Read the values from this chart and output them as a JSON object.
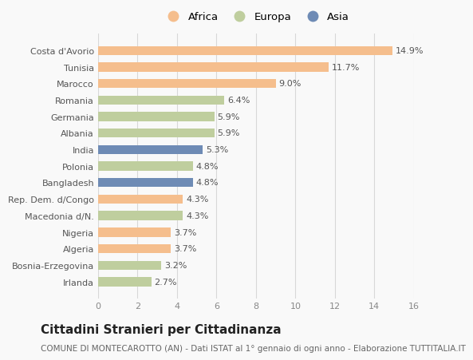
{
  "countries": [
    "Costa d'Avorio",
    "Tunisia",
    "Marocco",
    "Romania",
    "Germania",
    "Albania",
    "India",
    "Polonia",
    "Bangladesh",
    "Rep. Dem. d/Congo",
    "Macedonia d/N.",
    "Nigeria",
    "Algeria",
    "Bosnia-Erzegovina",
    "Irlanda"
  ],
  "values": [
    14.9,
    11.7,
    9.0,
    6.4,
    5.9,
    5.9,
    5.3,
    4.8,
    4.8,
    4.3,
    4.3,
    3.7,
    3.7,
    3.2,
    2.7
  ],
  "continents": [
    "Africa",
    "Africa",
    "Africa",
    "Europa",
    "Europa",
    "Europa",
    "Asia",
    "Europa",
    "Asia",
    "Africa",
    "Europa",
    "Africa",
    "Africa",
    "Europa",
    "Europa"
  ],
  "colors": {
    "Africa": "#F5BE8D",
    "Europa": "#BFCE9E",
    "Asia": "#6E8BB5"
  },
  "xlim": [
    0,
    16
  ],
  "xticks": [
    0,
    2,
    4,
    6,
    8,
    10,
    12,
    14,
    16
  ],
  "title": "Cittadini Stranieri per Cittadinanza",
  "subtitle": "COMUNE DI MONTECAROTTO (AN) - Dati ISTAT al 1° gennaio di ogni anno - Elaborazione TUTTITALIA.IT",
  "bg_color": "#f9f9f9",
  "grid_color": "#d8d8d8",
  "bar_height": 0.55,
  "label_fontsize": 8,
  "value_fontsize": 8,
  "title_fontsize": 11,
  "subtitle_fontsize": 7.5
}
